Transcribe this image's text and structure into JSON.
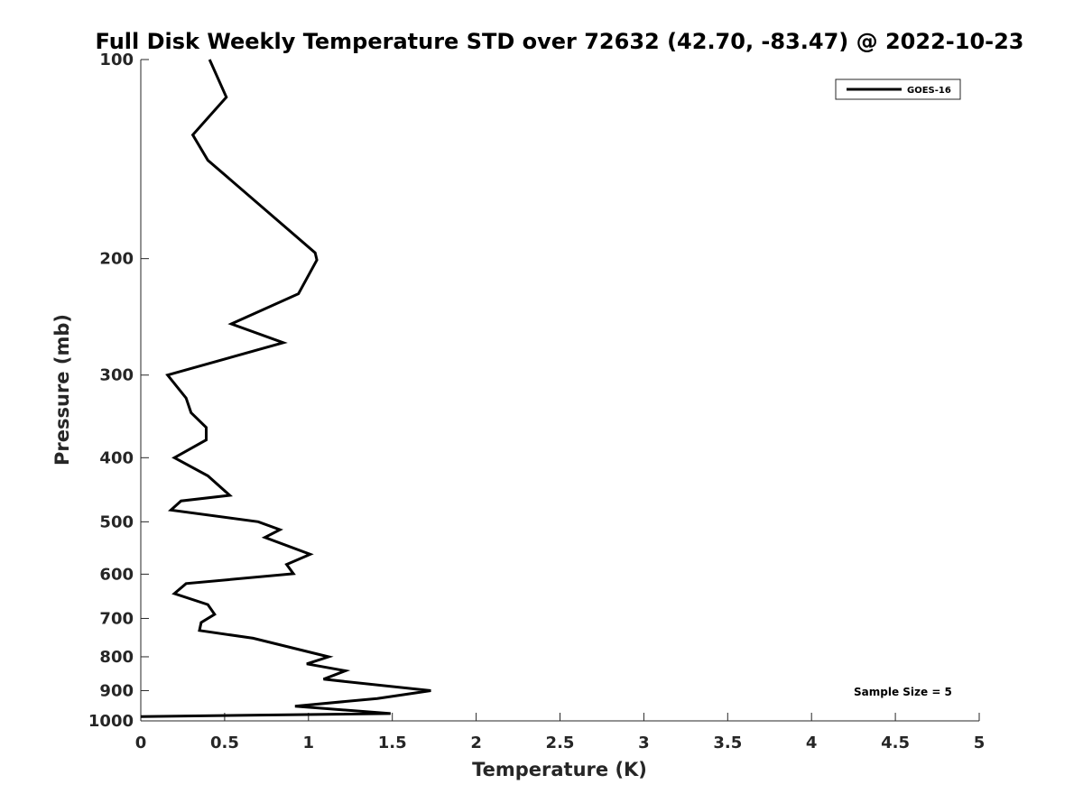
{
  "chart_data": {
    "type": "line",
    "title": "Full Disk Weekly Temperature STD over 72632 (42.70, -83.47) @ 2022-10-23",
    "xlabel": "Temperature (K)",
    "ylabel": "Pressure (mb)",
    "xlim": [
      0,
      5
    ],
    "ylim": [
      100,
      1000
    ],
    "y_scale": "log",
    "y_reversed": true,
    "x_ticks": [
      "0",
      "0.5",
      "1",
      "1.5",
      "2",
      "2.5",
      "3",
      "3.5",
      "4",
      "4.5",
      "5"
    ],
    "y_ticks": [
      "100",
      "200",
      "300",
      "400",
      "500",
      "600",
      "700",
      "800",
      "900",
      "1000"
    ],
    "grid": false,
    "legend": {
      "position": "top-right",
      "entries": [
        "GOES-16"
      ]
    },
    "annotation": "Sample Size = 5",
    "series": [
      {
        "name": "GOES-16",
        "color": "#000000",
        "x": [
          0.41,
          0.51,
          0.31,
          0.4,
          1.04,
          1.05,
          0.94,
          0.54,
          0.85,
          0.16,
          0.27,
          0.3,
          0.39,
          0.39,
          0.2,
          0.4,
          0.53,
          0.24,
          0.18,
          0.7,
          0.83,
          0.74,
          1.01,
          0.87,
          0.91,
          0.27,
          0.2,
          0.4,
          0.44,
          0.36,
          0.35,
          0.67,
          1.12,
          0.99,
          1.22,
          1.09,
          1.73,
          1.41,
          0.92,
          1.49,
          0.0
        ],
        "y": [
          100,
          114,
          130,
          142,
          196,
          201,
          226,
          251,
          268,
          300,
          325,
          342,
          360,
          376,
          400,
          426,
          456,
          465,
          480,
          500,
          514,
          528,
          560,
          580,
          599,
          620,
          642,
          667,
          690,
          710,
          730,
          750,
          800,
          820,
          840,
          865,
          900,
          925,
          950,
          975,
          985
        ]
      }
    ]
  }
}
